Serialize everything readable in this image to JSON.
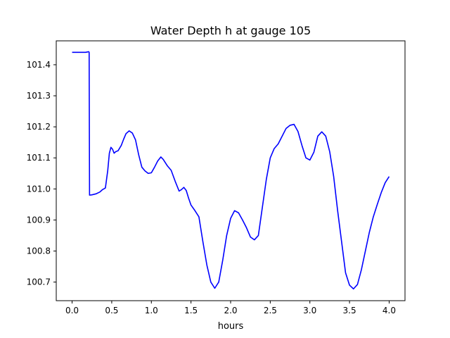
{
  "chart_data": {
    "type": "line",
    "title": "Water Depth h at gauge 105",
    "xlabel": "hours",
    "ylabel": "",
    "xlim": [
      -0.2,
      4.2
    ],
    "ylim": [
      100.64,
      101.477
    ],
    "xticks": [
      0.0,
      0.5,
      1.0,
      1.5,
      2.0,
      2.5,
      3.0,
      3.5,
      4.0
    ],
    "xtick_labels": [
      "0.0",
      "0.5",
      "1.0",
      "1.5",
      "2.0",
      "2.5",
      "3.0",
      "3.5",
      "4.0"
    ],
    "yticks": [
      100.7,
      100.8,
      100.9,
      101.0,
      101.1,
      101.2,
      101.3,
      101.4
    ],
    "ytick_labels": [
      "100.7",
      "100.8",
      "100.9",
      "101.0",
      "101.1",
      "101.2",
      "101.3",
      "101.4"
    ],
    "grid": false,
    "series": [
      {
        "color": "#0000ff",
        "x": [
          0.0,
          0.1,
          0.17,
          0.21,
          0.215,
          0.22,
          0.25,
          0.3,
          0.35,
          0.38,
          0.42,
          0.45,
          0.47,
          0.49,
          0.51,
          0.53,
          0.55,
          0.58,
          0.62,
          0.65,
          0.68,
          0.72,
          0.76,
          0.8,
          0.84,
          0.88,
          0.92,
          0.96,
          1.0,
          1.04,
          1.08,
          1.12,
          1.15,
          1.2,
          1.25,
          1.3,
          1.35,
          1.38,
          1.41,
          1.44,
          1.47,
          1.5,
          1.55,
          1.6,
          1.65,
          1.7,
          1.75,
          1.8,
          1.85,
          1.9,
          1.95,
          2.0,
          2.05,
          2.1,
          2.15,
          2.2,
          2.25,
          2.3,
          2.35,
          2.4,
          2.45,
          2.5,
          2.55,
          2.6,
          2.65,
          2.7,
          2.75,
          2.8,
          2.85,
          2.9,
          2.95,
          3.0,
          3.05,
          3.1,
          3.15,
          3.2,
          3.25,
          3.3,
          3.35,
          3.4,
          3.45,
          3.5,
          3.55,
          3.6,
          3.65,
          3.7,
          3.75,
          3.8,
          3.85,
          3.9,
          3.95,
          4.0
        ],
        "y": [
          101.44,
          101.44,
          101.44,
          101.442,
          101.44,
          100.98,
          100.981,
          100.984,
          100.99,
          100.997,
          101.003,
          101.06,
          101.115,
          101.134,
          101.128,
          101.115,
          101.12,
          101.123,
          101.14,
          101.16,
          101.178,
          101.187,
          101.18,
          101.158,
          101.11,
          101.07,
          101.058,
          101.05,
          101.052,
          101.07,
          101.09,
          101.103,
          101.095,
          101.075,
          101.06,
          101.025,
          100.993,
          100.998,
          101.005,
          100.995,
          100.97,
          100.948,
          100.93,
          100.91,
          100.83,
          100.755,
          100.7,
          100.68,
          100.7,
          100.77,
          100.85,
          100.905,
          100.93,
          100.923,
          100.9,
          100.875,
          100.845,
          100.836,
          100.85,
          100.94,
          101.03,
          101.1,
          101.13,
          101.145,
          101.17,
          101.195,
          101.205,
          101.208,
          101.185,
          101.14,
          101.1,
          101.093,
          101.118,
          101.17,
          101.184,
          101.17,
          101.12,
          101.04,
          100.93,
          100.83,
          100.73,
          100.69,
          100.678,
          100.692,
          100.74,
          100.8,
          100.86,
          100.91,
          100.95,
          100.988,
          101.02,
          101.04
        ]
      }
    ]
  }
}
